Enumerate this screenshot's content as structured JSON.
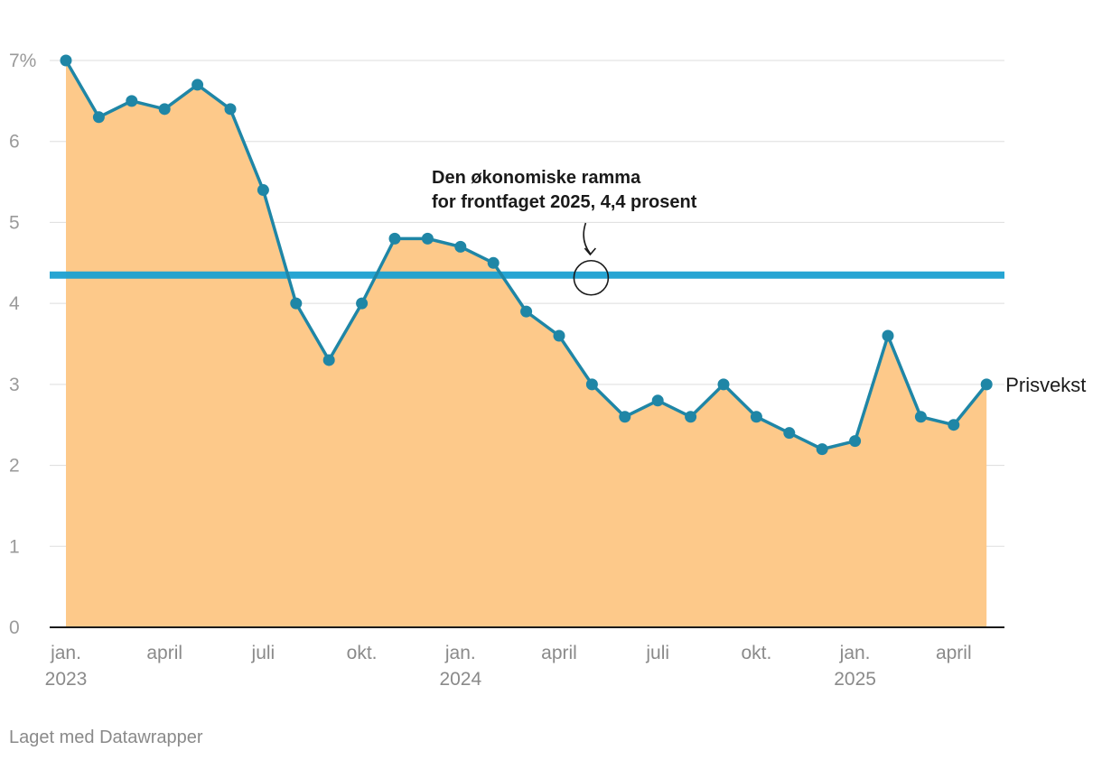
{
  "chart_data": {
    "type": "area",
    "title": "",
    "xlabel": "",
    "ylabel": "",
    "ylim": [
      0,
      7
    ],
    "y_ticks": [
      "0",
      "1",
      "2",
      "3",
      "4",
      "5",
      "6",
      "7%"
    ],
    "x_ticks": [
      {
        "month": "2023-01",
        "label": "jan.",
        "year": "2023"
      },
      {
        "month": "2023-04",
        "label": "april",
        "year": ""
      },
      {
        "month": "2023-07",
        "label": "juli",
        "year": ""
      },
      {
        "month": "2023-10",
        "label": "okt.",
        "year": ""
      },
      {
        "month": "2024-01",
        "label": "jan.",
        "year": "2024"
      },
      {
        "month": "2024-04",
        "label": "april",
        "year": ""
      },
      {
        "month": "2024-07",
        "label": "juli",
        "year": ""
      },
      {
        "month": "2024-10",
        "label": "okt.",
        "year": ""
      },
      {
        "month": "2025-01",
        "label": "jan.",
        "year": "2025"
      },
      {
        "month": "2025-04",
        "label": "april",
        "year": ""
      }
    ],
    "x": [
      "2023-01",
      "2023-02",
      "2023-03",
      "2023-04",
      "2023-05",
      "2023-06",
      "2023-07",
      "2023-08",
      "2023-09",
      "2023-10",
      "2023-11",
      "2023-12",
      "2024-01",
      "2024-02",
      "2024-03",
      "2024-04",
      "2024-05",
      "2024-06",
      "2024-07",
      "2024-08",
      "2024-09",
      "2024-10",
      "2024-11",
      "2024-12",
      "2025-01",
      "2025-02",
      "2025-03",
      "2025-04",
      "2025-05"
    ],
    "series": [
      {
        "name": "Prisvekst",
        "values": [
          7.0,
          6.3,
          6.5,
          6.4,
          6.7,
          6.4,
          5.4,
          4.0,
          3.3,
          4.0,
          4.8,
          4.8,
          4.7,
          4.5,
          3.9,
          3.6,
          3.0,
          2.6,
          2.8,
          2.6,
          3.0,
          2.6,
          2.4,
          2.2,
          2.3,
          3.6,
          2.6,
          2.5,
          3.0
        ]
      }
    ],
    "reference_line": {
      "value": 4.35
    },
    "annotation": {
      "lines": [
        "Den økonomiske ramma",
        "for frontfaget 2025, 4,4 prosent"
      ],
      "month": "2024-05"
    },
    "grid": true,
    "colors": {
      "line": "#1f86a6",
      "area": "#fdc98a",
      "reference": "#1ba1d1",
      "grid": "#dddddd"
    }
  },
  "footer": "Laget med Datawrapper"
}
